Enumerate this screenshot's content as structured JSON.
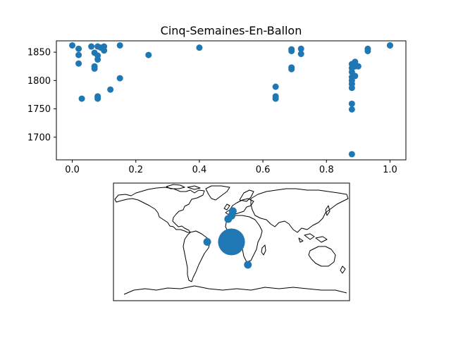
{
  "chart_data": [
    {
      "type": "scatter",
      "title": "Cinq-Semaines-En-Ballon",
      "xlabel": "",
      "ylabel": "",
      "xlim": [
        -0.05,
        1.05
      ],
      "ylim": [
        1660,
        1870
      ],
      "xticks": [
        "0.0",
        "0.2",
        "0.4",
        "0.6",
        "0.8",
        "1.0"
      ],
      "yticks": [
        "1700",
        "1750",
        "1800",
        "1850"
      ],
      "grid": false,
      "marker_color": "#1f77b4",
      "points": [
        [
          0.0,
          1862
        ],
        [
          0.02,
          1856
        ],
        [
          0.02,
          1845
        ],
        [
          0.02,
          1830
        ],
        [
          0.03,
          1768
        ],
        [
          0.06,
          1860
        ],
        [
          0.07,
          1849
        ],
        [
          0.07,
          1825
        ],
        [
          0.07,
          1821
        ],
        [
          0.08,
          1860
        ],
        [
          0.08,
          1844
        ],
        [
          0.08,
          1837
        ],
        [
          0.08,
          1772
        ],
        [
          0.08,
          1768
        ],
        [
          0.09,
          1858
        ],
        [
          0.1,
          1860
        ],
        [
          0.1,
          1853
        ],
        [
          0.12,
          1784
        ],
        [
          0.15,
          1862
        ],
        [
          0.15,
          1804
        ],
        [
          0.24,
          1845
        ],
        [
          0.4,
          1858
        ],
        [
          0.64,
          1789
        ],
        [
          0.64,
          1772
        ],
        [
          0.64,
          1768
        ],
        [
          0.69,
          1855
        ],
        [
          0.69,
          1852
        ],
        [
          0.69,
          1823
        ],
        [
          0.69,
          1820
        ],
        [
          0.72,
          1856
        ],
        [
          0.72,
          1847
        ],
        [
          0.88,
          1829
        ],
        [
          0.88,
          1822
        ],
        [
          0.88,
          1815
        ],
        [
          0.88,
          1806
        ],
        [
          0.88,
          1800
        ],
        [
          0.88,
          1794
        ],
        [
          0.88,
          1787
        ],
        [
          0.88,
          1759
        ],
        [
          0.88,
          1749
        ],
        [
          0.88,
          1670
        ],
        [
          0.89,
          1833
        ],
        [
          0.89,
          1825
        ],
        [
          0.89,
          1808
        ],
        [
          0.9,
          1825
        ],
        [
          0.93,
          1856
        ],
        [
          0.93,
          1852
        ],
        [
          1.0,
          1862
        ],
        [
          1.0,
          1862
        ]
      ]
    },
    {
      "type": "scatter",
      "title": "",
      "xlabel": "",
      "ylabel": "",
      "projection": "world map",
      "xlim": [
        -180,
        180
      ],
      "ylim": [
        -90,
        90
      ],
      "marker_color": "#1f77b4",
      "points": [
        {
          "lon": -37,
          "lat": 0,
          "size": 1
        },
        {
          "lon": 0,
          "lat": 0,
          "size": 12
        },
        {
          "lon": 25,
          "lat": -35,
          "size": 1
        },
        {
          "lon": -5,
          "lat": 35,
          "size": 1
        },
        {
          "lon": 0,
          "lat": 40,
          "size": 1
        },
        {
          "lon": 2,
          "lat": 47,
          "size": 1
        }
      ]
    }
  ]
}
